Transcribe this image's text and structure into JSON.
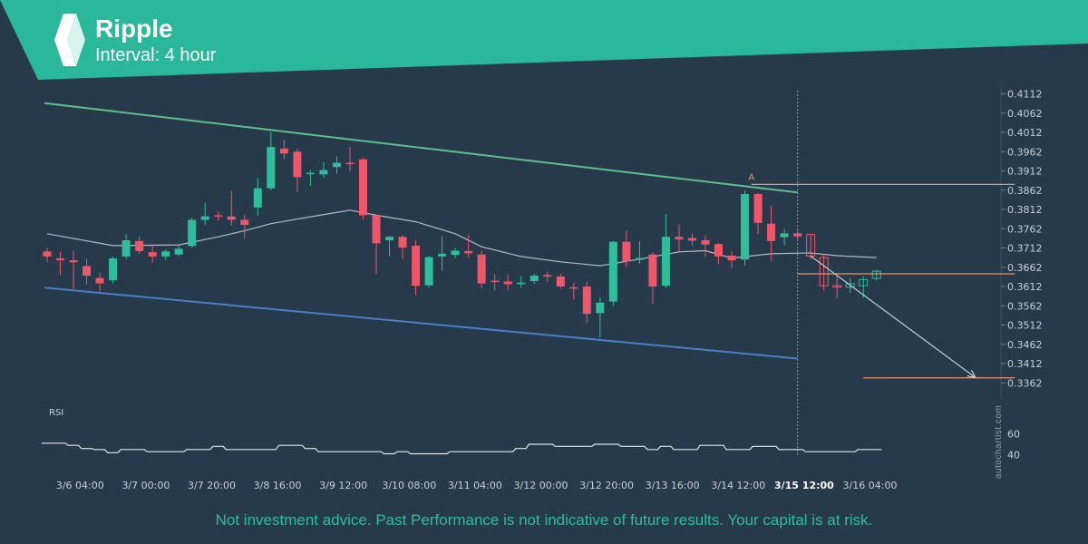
{
  "header": {
    "title": "Ripple",
    "subtitle": "Interval: 4 hour",
    "banner_color": "#29b89a",
    "logo": "ripple-logo-icon"
  },
  "footer": {
    "disclaimer": "Not investment advice. Past Performance is not indicative of future results. Your capital is at risk."
  },
  "watermark": "autochartist.com",
  "colors": {
    "background": "#263a4b",
    "bullish": "#2fbd9a",
    "bearish": "#f0566a",
    "resistance": "#5fbf8a",
    "support": "#4a7fc4",
    "level": "#e8956b",
    "moving_average": "#c9d1d7",
    "rsi": "#e1e5e8",
    "axis_text": "#c7d0d7"
  },
  "chart_data": {
    "type": "candlestick",
    "instrument": "Ripple",
    "interval": "4 hour",
    "y_ticks": [
      "0.4112",
      "0.4062",
      "0.4012",
      "0.3962",
      "0.3912",
      "0.3862",
      "0.3812",
      "0.3762",
      "0.3712",
      "0.3662",
      "0.3612",
      "0.3562",
      "0.3512",
      "0.3462",
      "0.3412",
      "0.3362"
    ],
    "ylim": [
      0.3332,
      0.4132
    ],
    "x_ticks": [
      {
        "index": 2.5,
        "label": "3/6 04:00"
      },
      {
        "index": 7.5,
        "label": "3/7 00:00"
      },
      {
        "index": 12.5,
        "label": "3/7 20:00"
      },
      {
        "index": 17.5,
        "label": "3/8 16:00"
      },
      {
        "index": 22.5,
        "label": "3/9 12:00"
      },
      {
        "index": 27.5,
        "label": "3/10 08:00"
      },
      {
        "index": 32.5,
        "label": "3/11 04:00"
      },
      {
        "index": 37.5,
        "label": "3/12 00:00"
      },
      {
        "index": 42.5,
        "label": "3/12 20:00"
      },
      {
        "index": 47.5,
        "label": "3/13 16:00"
      },
      {
        "index": 52.5,
        "label": "3/14 12:00"
      },
      {
        "index": 57.5,
        "label": "3/15 12:00",
        "highlight": true
      },
      {
        "index": 62.5,
        "label": "3/16 04:00"
      }
    ],
    "candles": [
      {
        "o": 0.3703,
        "h": 0.3712,
        "c": 0.369,
        "l": 0.3675
      },
      {
        "o": 0.3685,
        "h": 0.3702,
        "c": 0.368,
        "l": 0.3642
      },
      {
        "o": 0.368,
        "h": 0.3705,
        "c": 0.3675,
        "l": 0.3605
      },
      {
        "o": 0.3665,
        "h": 0.3684,
        "c": 0.364,
        "l": 0.3617
      },
      {
        "o": 0.3634,
        "h": 0.3648,
        "c": 0.362,
        "l": 0.3599
      },
      {
        "o": 0.3628,
        "h": 0.369,
        "c": 0.3685,
        "l": 0.362
      },
      {
        "o": 0.369,
        "h": 0.3748,
        "c": 0.3732,
        "l": 0.3683
      },
      {
        "o": 0.373,
        "h": 0.3742,
        "c": 0.3704,
        "l": 0.3697
      },
      {
        "o": 0.3701,
        "h": 0.3721,
        "c": 0.369,
        "l": 0.3675
      },
      {
        "o": 0.369,
        "h": 0.3708,
        "c": 0.3703,
        "l": 0.3681
      },
      {
        "o": 0.3695,
        "h": 0.3722,
        "c": 0.371,
        "l": 0.369
      },
      {
        "o": 0.3717,
        "h": 0.379,
        "c": 0.3785,
        "l": 0.3713
      },
      {
        "o": 0.3785,
        "h": 0.3829,
        "c": 0.3794,
        "l": 0.3772
      },
      {
        "o": 0.3797,
        "h": 0.3808,
        "c": 0.3794,
        "l": 0.3783
      },
      {
        "o": 0.3794,
        "h": 0.386,
        "c": 0.3785,
        "l": 0.3771
      },
      {
        "o": 0.3785,
        "h": 0.3798,
        "c": 0.3772,
        "l": 0.3736
      },
      {
        "o": 0.3817,
        "h": 0.3893,
        "c": 0.3867,
        "l": 0.3796
      },
      {
        "o": 0.3867,
        "h": 0.4012,
        "c": 0.3974,
        "l": 0.3862
      },
      {
        "o": 0.397,
        "h": 0.3993,
        "c": 0.3957,
        "l": 0.3943
      },
      {
        "o": 0.3962,
        "h": 0.397,
        "c": 0.3896,
        "l": 0.3857
      },
      {
        "o": 0.3907,
        "h": 0.3915,
        "c": 0.3907,
        "l": 0.3873
      },
      {
        "o": 0.3903,
        "h": 0.3935,
        "c": 0.3914,
        "l": 0.3895
      },
      {
        "o": 0.3922,
        "h": 0.395,
        "c": 0.3933,
        "l": 0.3904
      },
      {
        "o": 0.3933,
        "h": 0.3974,
        "c": 0.3932,
        "l": 0.3911
      },
      {
        "o": 0.3942,
        "h": 0.3947,
        "c": 0.3797,
        "l": 0.3785
      },
      {
        "o": 0.3797,
        "h": 0.3799,
        "c": 0.3724,
        "l": 0.3645
      },
      {
        "o": 0.3732,
        "h": 0.3744,
        "c": 0.3741,
        "l": 0.369
      },
      {
        "o": 0.3741,
        "h": 0.3745,
        "c": 0.3713,
        "l": 0.3683
      },
      {
        "o": 0.3718,
        "h": 0.3733,
        "c": 0.3614,
        "l": 0.359
      },
      {
        "o": 0.3615,
        "h": 0.3692,
        "c": 0.3688,
        "l": 0.3608
      },
      {
        "o": 0.369,
        "h": 0.3742,
        "c": 0.3697,
        "l": 0.3653
      },
      {
        "o": 0.3694,
        "h": 0.3712,
        "c": 0.3705,
        "l": 0.3685
      },
      {
        "o": 0.3704,
        "h": 0.3746,
        "c": 0.3698,
        "l": 0.3686
      },
      {
        "o": 0.3695,
        "h": 0.3705,
        "c": 0.362,
        "l": 0.3608
      },
      {
        "o": 0.3627,
        "h": 0.3644,
        "c": 0.3625,
        "l": 0.3602
      },
      {
        "o": 0.3625,
        "h": 0.3642,
        "c": 0.3618,
        "l": 0.3602
      },
      {
        "o": 0.3618,
        "h": 0.364,
        "c": 0.3622,
        "l": 0.3608
      },
      {
        "o": 0.3626,
        "h": 0.3645,
        "c": 0.364,
        "l": 0.3619
      },
      {
        "o": 0.3642,
        "h": 0.3651,
        "c": 0.3638,
        "l": 0.3624
      },
      {
        "o": 0.3638,
        "h": 0.3645,
        "c": 0.3612,
        "l": 0.3606
      },
      {
        "o": 0.361,
        "h": 0.3622,
        "c": 0.3608,
        "l": 0.3578
      },
      {
        "o": 0.3612,
        "h": 0.3625,
        "c": 0.3541,
        "l": 0.3517
      },
      {
        "o": 0.3543,
        "h": 0.3584,
        "c": 0.357,
        "l": 0.348
      },
      {
        "o": 0.3573,
        "h": 0.3731,
        "c": 0.3728,
        "l": 0.3561
      },
      {
        "o": 0.3728,
        "h": 0.3758,
        "c": 0.3677,
        "l": 0.3662
      },
      {
        "o": 0.3681,
        "h": 0.373,
        "c": 0.3686,
        "l": 0.3671
      },
      {
        "o": 0.3695,
        "h": 0.3701,
        "c": 0.3612,
        "l": 0.3566
      },
      {
        "o": 0.3614,
        "h": 0.38,
        "c": 0.3741,
        "l": 0.3609
      },
      {
        "o": 0.3741,
        "h": 0.3773,
        "c": 0.3734,
        "l": 0.3703
      },
      {
        "o": 0.3738,
        "h": 0.375,
        "c": 0.3731,
        "l": 0.3717
      },
      {
        "o": 0.3732,
        "h": 0.3745,
        "c": 0.3721,
        "l": 0.3689
      },
      {
        "o": 0.3722,
        "h": 0.3725,
        "c": 0.369,
        "l": 0.3671
      },
      {
        "o": 0.3692,
        "h": 0.3703,
        "c": 0.368,
        "l": 0.366
      },
      {
        "o": 0.3682,
        "h": 0.3862,
        "c": 0.3852,
        "l": 0.3667
      },
      {
        "o": 0.3852,
        "h": 0.3855,
        "c": 0.3777,
        "l": 0.3748
      },
      {
        "o": 0.3775,
        "h": 0.3822,
        "c": 0.373,
        "l": 0.3678
      },
      {
        "o": 0.374,
        "h": 0.3761,
        "c": 0.375,
        "l": 0.3719
      },
      {
        "o": 0.375,
        "h": 0.3757,
        "c": 0.3742,
        "l": 0.3732
      },
      {
        "o": 0.3747,
        "h": 0.3748,
        "c": 0.3691,
        "l": 0.3683
      },
      {
        "o": 0.3687,
        "h": 0.3697,
        "c": 0.3614,
        "l": 0.3601
      },
      {
        "o": 0.3614,
        "h": 0.364,
        "c": 0.3613,
        "l": 0.3582
      },
      {
        "o": 0.361,
        "h": 0.3634,
        "c": 0.3619,
        "l": 0.3595
      },
      {
        "o": 0.3614,
        "h": 0.3638,
        "c": 0.363,
        "l": 0.3583
      },
      {
        "o": 0.3633,
        "h": 0.3655,
        "c": 0.3652,
        "l": 0.3627
      }
    ],
    "forecast_candles_from_index": 58,
    "moving_average": [
      {
        "i": 0,
        "v": 0.3749
      },
      {
        "i": 5,
        "v": 0.3718
      },
      {
        "i": 10,
        "v": 0.372
      },
      {
        "i": 13,
        "v": 0.3741
      },
      {
        "i": 15,
        "v": 0.3757
      },
      {
        "i": 17,
        "v": 0.3775
      },
      {
        "i": 20,
        "v": 0.3793
      },
      {
        "i": 23,
        "v": 0.381
      },
      {
        "i": 25,
        "v": 0.3797
      },
      {
        "i": 28,
        "v": 0.378
      },
      {
        "i": 31,
        "v": 0.3749
      },
      {
        "i": 33,
        "v": 0.3715
      },
      {
        "i": 36,
        "v": 0.369
      },
      {
        "i": 39,
        "v": 0.3676
      },
      {
        "i": 42,
        "v": 0.3666
      },
      {
        "i": 45,
        "v": 0.3683
      },
      {
        "i": 48,
        "v": 0.3702
      },
      {
        "i": 50,
        "v": 0.3705
      },
      {
        "i": 52,
        "v": 0.3686
      },
      {
        "i": 55,
        "v": 0.3697
      },
      {
        "i": 58,
        "v": 0.3699
      },
      {
        "i": 60,
        "v": 0.3692
      },
      {
        "i": 63,
        "v": 0.3687
      }
    ],
    "resistance_line": {
      "from": {
        "i": -0.2,
        "v": 0.4088
      },
      "to": {
        "i": 57,
        "v": 0.3856
      }
    },
    "support_line": {
      "from": {
        "i": -0.2,
        "v": 0.3609
      },
      "to": {
        "i": 57,
        "v": 0.3425
      }
    },
    "levels": [
      {
        "v": 0.3877,
        "from_i": 53.5,
        "to_i": 73.5
      },
      {
        "v": 0.3645,
        "from_i": 57,
        "to_i": 73.5
      },
      {
        "v": 0.3375,
        "from_i": 62,
        "to_i": 73.5
      }
    ],
    "projection_arrow": {
      "from": {
        "i": 58,
        "v": 0.3691
      },
      "to": {
        "i": 70.5,
        "v": 0.3376
      }
    },
    "annotations": [
      {
        "text": "A",
        "i": 53.5,
        "v": 0.3888
      }
    ],
    "current_time_index": 57,
    "rsi": {
      "label": "RSI",
      "ticks": [
        "60",
        "40"
      ],
      "ylim": [
        20,
        80
      ],
      "values": [
        51,
        51,
        49,
        46,
        45,
        42,
        45,
        45,
        43,
        43,
        43,
        45,
        45,
        48,
        45,
        45,
        45,
        45,
        49,
        49,
        46,
        43,
        43,
        43,
        43,
        43,
        41,
        43,
        41,
        41,
        41,
        43,
        43,
        43,
        43,
        43,
        46,
        50,
        50,
        48,
        48,
        48,
        50,
        50,
        48,
        48,
        45,
        48,
        45,
        45,
        49,
        49,
        45,
        45,
        48,
        48,
        45,
        45,
        43,
        43,
        43,
        43,
        45,
        45
      ]
    }
  }
}
